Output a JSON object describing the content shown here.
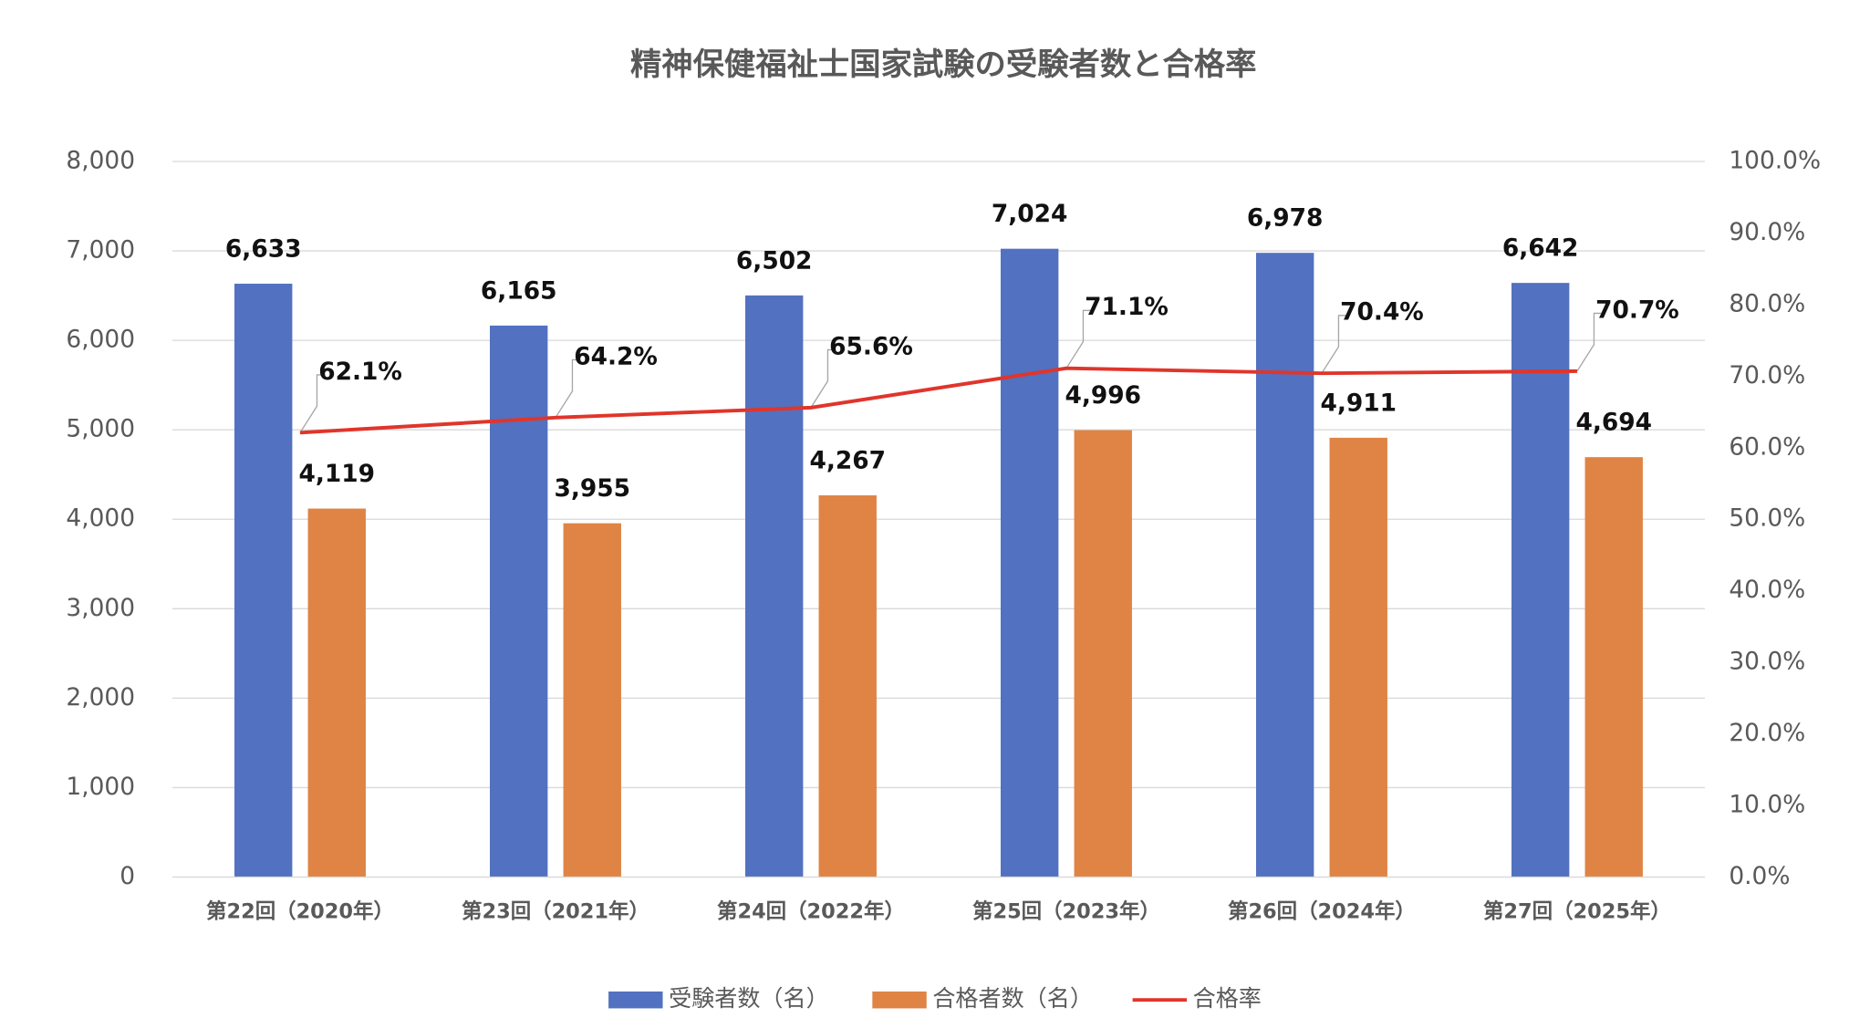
{
  "chart_data": {
    "type": "bar",
    "title": "精神保健福祉士国家試験の受験者数と合格率",
    "categories": [
      "第22回（2020年）",
      "第23回（2021年）",
      "第24回（2022年）",
      "第25回（2023年）",
      "第26回（2024年）",
      "第27回（2025年）"
    ],
    "series": [
      {
        "name": "受験者数（名）",
        "type": "bar",
        "color": "#5271c0",
        "values": [
          6633,
          6165,
          6502,
          7024,
          6978,
          6642
        ],
        "value_labels": [
          "6,633",
          "6,165",
          "6,502",
          "7,024",
          "6,978",
          "6,642"
        ]
      },
      {
        "name": "合格者数（名）",
        "type": "bar",
        "color": "#df8444",
        "values": [
          4119,
          3955,
          4267,
          4996,
          4911,
          4694
        ],
        "value_labels": [
          "4,119",
          "3,955",
          "4,267",
          "4,996",
          "4,911",
          "4,694"
        ]
      },
      {
        "name": "合格率",
        "type": "line",
        "axis": "y2",
        "color": "#e0352b",
        "values": [
          62.1,
          64.2,
          65.6,
          71.1,
          70.4,
          70.7
        ],
        "value_labels": [
          "62.1%",
          "64.2%",
          "65.6%",
          "71.1%",
          "70.4%",
          "70.7%"
        ]
      }
    ],
    "ylim": [
      0,
      8000
    ],
    "yticks": [
      0,
      {
        "value": 1000,
        "label": "1,000"
      },
      {
        "value": 2000,
        "label": "2,000"
      },
      {
        "value": 3000,
        "label": "3,000"
      },
      {
        "value": 4000,
        "label": "4,000"
      },
      {
        "value": 5000,
        "label": "5,000"
      },
      {
        "value": 6000,
        "label": "6,000"
      },
      {
        "value": 7000,
        "label": "7,000"
      },
      {
        "value": 8000,
        "label": "8,000"
      }
    ],
    "y2lim": [
      0,
      100
    ],
    "y2ticks": [
      {
        "value": 0,
        "label": "0.0%"
      },
      {
        "value": 10,
        "label": "10.0%"
      },
      {
        "value": 20,
        "label": "20.0%"
      },
      {
        "value": 30,
        "label": "30.0%"
      },
      {
        "value": 40,
        "label": "40.0%"
      },
      {
        "value": 50,
        "label": "50.0%"
      },
      {
        "value": 60,
        "label": "60.0%"
      },
      {
        "value": 70,
        "label": "70.0%"
      },
      {
        "value": 80,
        "label": "80.0%"
      },
      {
        "value": 90,
        "label": "90.0%"
      },
      {
        "value": 100,
        "label": "100.0%"
      }
    ],
    "grid": true,
    "legend": "bottom"
  }
}
